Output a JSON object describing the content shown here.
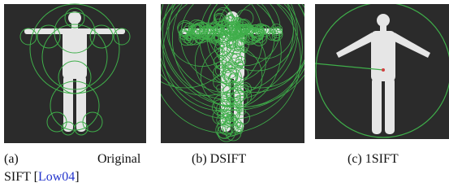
{
  "figures": [
    {
      "label": "(a)",
      "caption": [
        "Original",
        "SIFT"
      ],
      "citation": {
        "open": "[",
        "key": "Low04",
        "close": "]"
      }
    },
    {
      "label": "(b)",
      "caption": [
        "DSIFT"
      ]
    },
    {
      "label": "(c)",
      "caption": [
        "1SIFT"
      ]
    }
  ]
}
